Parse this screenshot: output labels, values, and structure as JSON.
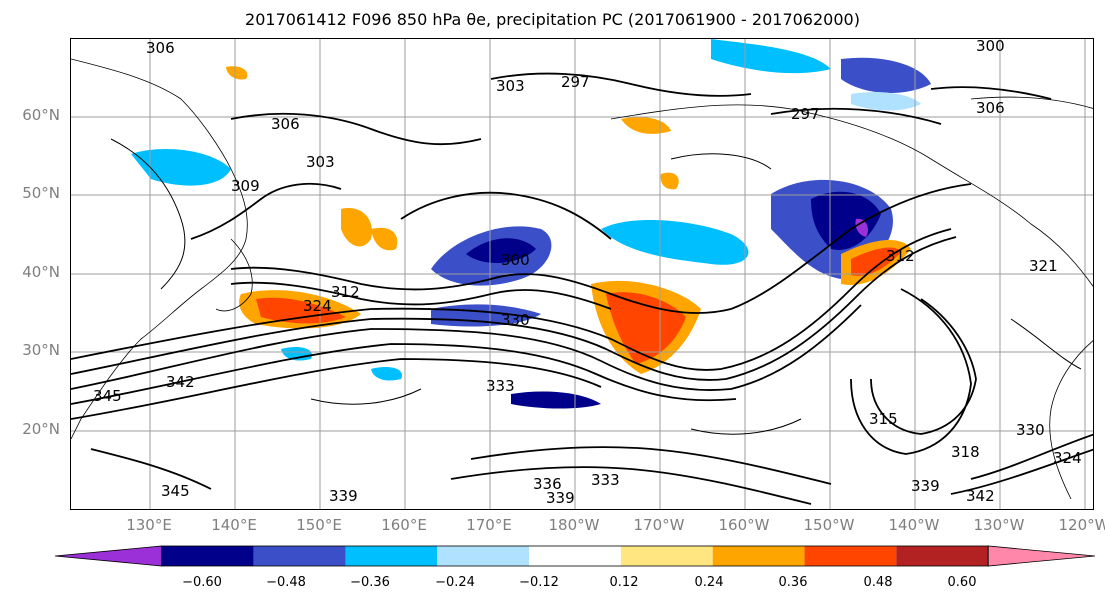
{
  "title": "2017061412 F096 850 hPa θe, precipitation PC (2017061900 - 2017062000)",
  "map": {
    "lat_labels": [
      "60°N",
      "50°N",
      "40°N",
      "30°N",
      "20°N"
    ],
    "lon_labels": [
      "130°E",
      "140°E",
      "150°E",
      "160°E",
      "170°E",
      "180°W",
      "170°W",
      "160°W",
      "150°W",
      "140°W",
      "130°W",
      "120°W"
    ],
    "contour_labels": [
      "306",
      "297",
      "303",
      "306",
      "303",
      "309",
      "300",
      "312",
      "324",
      "330",
      "312",
      "321",
      "333",
      "333",
      "342",
      "345",
      "345",
      "339",
      "336",
      "339",
      "315",
      "318",
      "324",
      "330",
      "339",
      "342",
      "300",
      "306",
      "297"
    ],
    "colors": {
      "grid": "#9e9e9e",
      "coast": "#000000",
      "contour": "#000000"
    }
  },
  "colorbar": {
    "ticks": [
      "−0.60",
      "−0.48",
      "−0.36",
      "−0.24",
      "−0.12",
      "0.12",
      "0.24",
      "0.36",
      "0.48",
      "0.60"
    ],
    "colors": [
      "#9b30d8",
      "#00008b",
      "#3a4fc8",
      "#00bfff",
      "#b0e2ff",
      "#ffffff",
      "#ffe680",
      "#ffa500",
      "#ff4500",
      "#b22222",
      "#ff88aa"
    ]
  }
}
